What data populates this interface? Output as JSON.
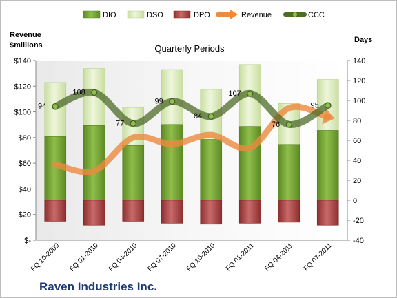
{
  "chart_data": {
    "type": "bar",
    "company": "Raven Industries Inc.",
    "title": "Quarterly Periods",
    "ylabel_left": [
      "Revenue",
      "$millions"
    ],
    "ylabel_right": "Days",
    "categories": [
      "FQ 10-2009",
      "FQ 01-2010",
      "FQ 04-2010",
      "FQ 07-2010",
      "FQ 10-2010",
      "FQ 01-2011",
      "FQ 04-2011",
      "FQ 07-2011"
    ],
    "legend": [
      "DIO",
      "DSO",
      "DPO",
      "Revenue",
      "CCC"
    ],
    "legend_position": "top",
    "ylim_left": [
      0,
      140
    ],
    "ylim_right": [
      -40,
      140
    ],
    "yticks_left": [
      "$-",
      "$20",
      "$40",
      "$60",
      "$80",
      "$100",
      "$120",
      "$140"
    ],
    "yticks_right": [
      -40,
      -20,
      0,
      20,
      40,
      60,
      80,
      100,
      120,
      140
    ],
    "grid": false,
    "series": [
      {
        "name": "DIO",
        "axis": "right",
        "kind": "stacked-bar",
        "values": [
          64,
          75,
          55,
          76,
          61,
          74,
          56,
          70
        ]
      },
      {
        "name": "DSO",
        "axis": "right",
        "kind": "stacked-bar",
        "values": [
          54,
          57,
          38,
          55,
          50,
          62,
          41,
          51
        ]
      },
      {
        "name": "DPO",
        "axis": "right",
        "kind": "negative-bar",
        "values": [
          -21,
          -25,
          -21,
          -23,
          -24,
          -23,
          -22,
          -25
        ]
      },
      {
        "name": "Revenue",
        "axis": "left",
        "kind": "line",
        "values": [
          59,
          54,
          80,
          75,
          82,
          72,
          103,
          96
        ]
      },
      {
        "name": "CCC",
        "axis": "right",
        "kind": "line",
        "values": [
          94,
          108,
          77,
          99,
          84,
          107,
          76,
          95
        ]
      }
    ],
    "data_labels": [
      "94",
      "108",
      "77",
      "99",
      "84",
      "107",
      "76",
      "95"
    ],
    "colors": {
      "dio": "#77a33a",
      "dso": "#d7e8b4",
      "dpo": "#b84c4c",
      "revenue": "#ec8a3e",
      "ccc": "#4e6b2a",
      "plot_bg": "#f2f2f2"
    }
  }
}
